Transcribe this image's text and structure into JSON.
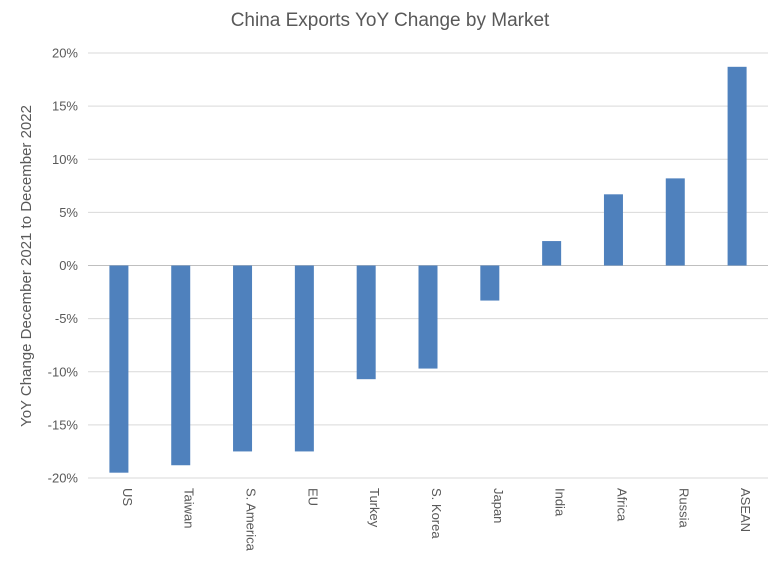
{
  "chart_data": {
    "type": "bar",
    "title": "China Exports YoY Change by Market",
    "xlabel": "",
    "ylabel": "YoY Change December  2021 to December 2022",
    "categories": [
      "US",
      "Taiwan",
      "S. America",
      "EU",
      "Turkey",
      "S. Korea",
      "Japan",
      "India",
      "Africa",
      "Russia",
      "ASEAN"
    ],
    "values": [
      -19.5,
      -18.8,
      -17.5,
      -17.5,
      -10.7,
      -9.7,
      -3.3,
      2.3,
      6.7,
      8.2,
      18.7
    ],
    "ylim": [
      -20,
      20
    ],
    "yticks": [
      20,
      15,
      10,
      5,
      0,
      -5,
      -10,
      -15,
      -20
    ],
    "ytick_labels": [
      "20%",
      "15%",
      "10%",
      "5%",
      "0%",
      "-5%",
      "-10%",
      "-15%",
      "-20%"
    ],
    "grid": true,
    "legend": false,
    "bar_color": "#4f81bd"
  }
}
